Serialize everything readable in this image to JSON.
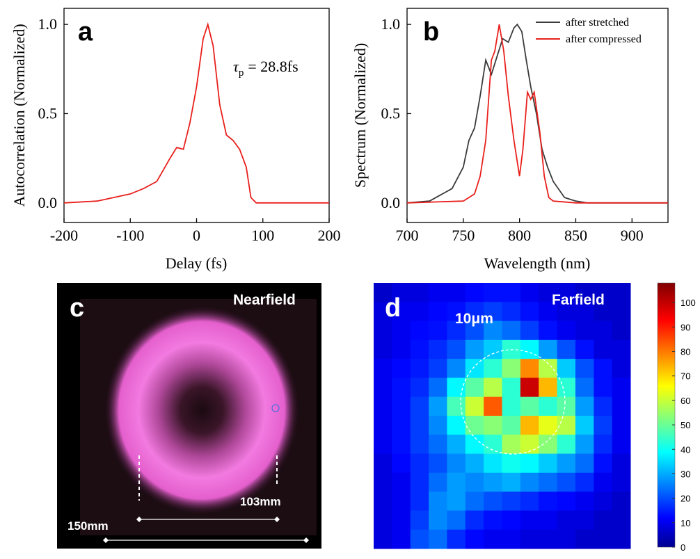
{
  "chart_data": [
    {
      "type": "line",
      "label": "a",
      "xlabel": "Delay (fs)",
      "ylabel": "Autocorrelation (Normalized)",
      "annotation": {
        "symbol": "τ",
        "subscript": "p",
        "text": "= 28.8fs"
      },
      "color": "#e8201c",
      "x": [
        -200,
        -150,
        -100,
        -80,
        -60,
        -40,
        -30,
        -20,
        -10,
        0,
        10,
        17,
        25,
        35,
        45,
        55,
        65,
        75,
        82,
        90,
        100,
        150,
        200
      ],
      "values": [
        0,
        0.01,
        0.05,
        0.08,
        0.12,
        0.25,
        0.31,
        0.3,
        0.45,
        0.65,
        0.92,
        1.0,
        0.88,
        0.55,
        0.38,
        0.35,
        0.3,
        0.2,
        0.03,
        0,
        0,
        0,
        0
      ],
      "xlim": [
        -200,
        200
      ],
      "xticks": [
        -200,
        -100,
        0,
        100,
        200
      ],
      "ylim": [
        -0.11,
        1.09
      ],
      "yticks": [
        {
          "value": 0,
          "label": "0.0"
        },
        {
          "value": 0.5,
          "label": "0.5"
        },
        {
          "value": 1,
          "label": "1.0"
        }
      ]
    },
    {
      "type": "line",
      "label": "b",
      "xlabel": "Wavelength (nm)",
      "ylabel": "Spectrum (Normalized)",
      "legend": "upper right",
      "series": [
        {
          "name": "after stretched",
          "color": "#3a3a3a",
          "x": [
            700,
            720,
            740,
            750,
            755,
            760,
            765,
            770,
            775,
            780,
            785,
            790,
            795,
            798,
            802,
            806,
            810,
            815,
            820,
            825,
            830,
            840,
            850,
            860,
            932
          ],
          "values": [
            0,
            0.01,
            0.08,
            0.2,
            0.35,
            0.42,
            0.6,
            0.8,
            0.72,
            0.82,
            0.92,
            0.9,
            0.98,
            1.0,
            0.96,
            0.8,
            0.65,
            0.5,
            0.3,
            0.2,
            0.12,
            0.03,
            0.01,
            0,
            0
          ]
        },
        {
          "name": "after compressed",
          "color": "#e8201c",
          "x": [
            700,
            750,
            760,
            765,
            770,
            775,
            778,
            782,
            786,
            790,
            795,
            800,
            803,
            807,
            810,
            813,
            818,
            822,
            826,
            830,
            850,
            932
          ],
          "values": [
            0,
            0.01,
            0.05,
            0.15,
            0.35,
            0.8,
            0.85,
            1.0,
            0.85,
            0.6,
            0.35,
            0.15,
            0.3,
            0.62,
            0.58,
            0.62,
            0.4,
            0.15,
            0.03,
            0.01,
            0,
            0
          ]
        }
      ],
      "xlim": [
        700,
        932
      ],
      "xticks": [
        700,
        750,
        800,
        850,
        900
      ],
      "ylim": [
        -0.11,
        1.09
      ],
      "yticks": [
        {
          "value": 0,
          "label": "0.0"
        },
        {
          "value": 0.5,
          "label": "0.5"
        },
        {
          "value": 1,
          "label": "1.0"
        }
      ]
    },
    {
      "type": "image",
      "label": "c",
      "title": "Nearfield",
      "annotations": [
        "103mm",
        "150mm"
      ]
    },
    {
      "type": "heatmap",
      "label": "d",
      "title": "Farfield",
      "annotation": "10μm",
      "zlim": [
        0,
        108
      ],
      "zticks": [
        0,
        10,
        20,
        30,
        40,
        50,
        60,
        70,
        80,
        90,
        100
      ],
      "z": [
        [
          8,
          10,
          10,
          12,
          12,
          14,
          15,
          15,
          12,
          10,
          10,
          8,
          8,
          8
        ],
        [
          10,
          12,
          12,
          14,
          15,
          18,
          20,
          18,
          15,
          12,
          10,
          10,
          8,
          8
        ],
        [
          10,
          12,
          14,
          15,
          18,
          22,
          28,
          25,
          20,
          15,
          12,
          10,
          10,
          8
        ],
        [
          10,
          12,
          15,
          18,
          22,
          30,
          35,
          45,
          40,
          30,
          22,
          15,
          10,
          10
        ],
        [
          12,
          14,
          16,
          20,
          28,
          38,
          45,
          55,
          80,
          60,
          35,
          22,
          15,
          10
        ],
        [
          12,
          15,
          18,
          25,
          40,
          50,
          60,
          45,
          100,
          75,
          45,
          25,
          15,
          12
        ],
        [
          12,
          15,
          20,
          30,
          48,
          62,
          85,
          45,
          50,
          45,
          50,
          30,
          18,
          12
        ],
        [
          12,
          15,
          20,
          28,
          40,
          52,
          55,
          50,
          75,
          65,
          60,
          35,
          20,
          12
        ],
        [
          12,
          15,
          20,
          25,
          32,
          40,
          45,
          58,
          62,
          55,
          45,
          30,
          18,
          12
        ],
        [
          10,
          14,
          18,
          22,
          28,
          32,
          38,
          42,
          40,
          35,
          30,
          25,
          15,
          10
        ],
        [
          10,
          12,
          18,
          25,
          30,
          28,
          30,
          32,
          28,
          25,
          22,
          18,
          12,
          10
        ],
        [
          10,
          12,
          18,
          28,
          30,
          25,
          22,
          20,
          18,
          15,
          14,
          12,
          10,
          8
        ],
        [
          10,
          12,
          20,
          28,
          25,
          18,
          15,
          14,
          12,
          12,
          10,
          10,
          8,
          8
        ],
        [
          10,
          12,
          22,
          25,
          18,
          14,
          12,
          12,
          10,
          10,
          10,
          8,
          8,
          8
        ]
      ]
    }
  ]
}
